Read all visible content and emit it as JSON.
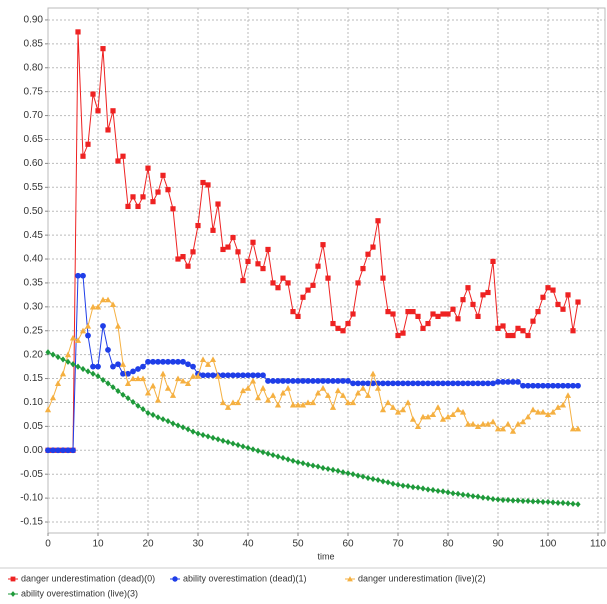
{
  "chart_data": {
    "type": "line",
    "x_label": "time",
    "x": [
      0,
      1,
      2,
      3,
      4,
      5,
      6,
      7,
      8,
      9,
      10,
      11,
      12,
      13,
      14,
      15,
      16,
      17,
      18,
      19,
      20,
      21,
      22,
      23,
      24,
      25,
      26,
      27,
      28,
      29,
      30,
      31,
      32,
      33,
      34,
      35,
      36,
      37,
      38,
      39,
      40,
      41,
      42,
      43,
      44,
      45,
      46,
      47,
      48,
      49,
      50,
      51,
      52,
      53,
      54,
      55,
      56,
      57,
      58,
      59,
      60,
      61,
      62,
      63,
      64,
      65,
      66,
      67,
      68,
      69,
      70,
      71,
      72,
      73,
      74,
      75,
      76,
      77,
      78,
      79,
      80,
      81,
      82,
      83,
      84,
      85,
      86,
      87,
      88,
      89,
      90,
      91,
      92,
      93,
      94,
      95,
      96,
      97,
      98,
      99,
      100,
      101,
      102,
      103,
      104,
      105,
      106
    ],
    "xlim": [
      0,
      111.4
    ],
    "xticks": [
      0,
      10,
      20,
      30,
      40,
      50,
      60,
      70,
      80,
      90,
      100,
      110
    ],
    "ylim": [
      -0.173,
      0.925
    ],
    "yticks": [
      -0.15,
      {
        "value": -0.1,
        "label": "-0.10"
      },
      -0.05,
      {
        "value": 0,
        "label": "0.00"
      },
      0.05,
      {
        "value": 0.1,
        "label": "0.10"
      },
      0.15,
      {
        "value": 0.2,
        "label": "0.20"
      },
      0.25,
      {
        "value": 0.3,
        "label": "0.30"
      },
      0.35,
      {
        "value": 0.4,
        "label": "0.40"
      },
      0.45,
      {
        "value": 0.5,
        "label": "0.50"
      },
      0.55,
      {
        "value": 0.6,
        "label": "0.60"
      },
      0.65,
      {
        "value": 0.7,
        "label": "0.70"
      },
      0.75,
      {
        "value": 0.8,
        "label": "0.80"
      },
      0.85,
      {
        "value": 0.9,
        "label": "0.90"
      }
    ],
    "grid": true,
    "legend": "bottom",
    "series": [
      {
        "name": "danger underestimation (dead)(0)",
        "color": "#ee2222",
        "marker": "square",
        "values": [
          0,
          0,
          0,
          0,
          0,
          0,
          0.875,
          0.615,
          0.64,
          0.745,
          0.71,
          0.84,
          0.67,
          0.71,
          0.605,
          0.615,
          0.51,
          0.53,
          0.51,
          0.53,
          0.59,
          0.52,
          0.54,
          0.575,
          0.545,
          0.505,
          0.4,
          0.405,
          0.385,
          0.415,
          0.47,
          0.56,
          0.555,
          0.46,
          0.515,
          0.42,
          0.425,
          0.445,
          0.415,
          0.355,
          0.395,
          0.435,
          0.39,
          0.38,
          0.42,
          0.35,
          0.34,
          0.36,
          0.35,
          0.29,
          0.28,
          0.32,
          0.335,
          0.345,
          0.385,
          0.43,
          0.36,
          0.265,
          0.255,
          0.25,
          0.265,
          0.285,
          0.35,
          0.38,
          0.41,
          0.425,
          0.48,
          0.36,
          0.29,
          0.285,
          0.24,
          0.245,
          0.29,
          0.29,
          0.28,
          0.255,
          0.265,
          0.285,
          0.28,
          0.285,
          0.285,
          0.295,
          0.275,
          0.315,
          0.34,
          0.305,
          0.28,
          0.325,
          0.33,
          0.395,
          0.255,
          0.26,
          0.24,
          0.24,
          0.255,
          0.25,
          0.24,
          0.27,
          0.29,
          0.32,
          0.34,
          0.335,
          0.305,
          0.295,
          0.325,
          0.25,
          0.31
        ]
      },
      {
        "name": "ability overestimation (dead)(1)",
        "color": "#1f3ee8",
        "marker": "circle",
        "values": [
          0,
          0,
          0,
          0,
          0,
          0,
          0.365,
          0.365,
          0.24,
          0.175,
          0.175,
          0.26,
          0.21,
          0.175,
          0.18,
          0.16,
          0.16,
          0.165,
          0.17,
          0.175,
          0.185,
          0.185,
          0.185,
          0.185,
          0.185,
          0.185,
          0.185,
          0.185,
          0.18,
          0.175,
          0.16,
          0.157,
          0.157,
          0.157,
          0.157,
          0.157,
          0.157,
          0.157,
          0.157,
          0.157,
          0.157,
          0.157,
          0.157,
          0.157,
          0.145,
          0.145,
          0.145,
          0.145,
          0.145,
          0.145,
          0.145,
          0.145,
          0.145,
          0.145,
          0.145,
          0.145,
          0.145,
          0.145,
          0.145,
          0.145,
          0.145,
          0.14,
          0.14,
          0.14,
          0.14,
          0.14,
          0.14,
          0.14,
          0.14,
          0.14,
          0.14,
          0.14,
          0.14,
          0.14,
          0.14,
          0.14,
          0.14,
          0.14,
          0.14,
          0.14,
          0.14,
          0.14,
          0.14,
          0.14,
          0.14,
          0.14,
          0.14,
          0.14,
          0.14,
          0.14,
          0.143,
          0.143,
          0.143,
          0.143,
          0.143,
          0.135,
          0.135,
          0.135,
          0.135,
          0.135,
          0.135,
          0.135,
          0.135,
          0.135,
          0.135,
          0.135,
          0.135
        ]
      },
      {
        "name": "danger underestimation (live)(2)",
        "color": "#f5b041",
        "marker": "triangle",
        "values": [
          0.085,
          0.11,
          0.14,
          0.16,
          0.2,
          0.235,
          0.23,
          0.25,
          0.26,
          0.3,
          0.3,
          0.315,
          0.315,
          0.305,
          0.26,
          0.18,
          0.14,
          0.15,
          0.15,
          0.15,
          0.12,
          0.135,
          0.105,
          0.16,
          0.13,
          0.115,
          0.15,
          0.145,
          0.14,
          0.155,
          0.155,
          0.19,
          0.18,
          0.19,
          0.155,
          0.1,
          0.09,
          0.1,
          0.1,
          0.125,
          0.13,
          0.145,
          0.11,
          0.13,
          0.105,
          0.115,
          0.095,
          0.12,
          0.13,
          0.095,
          0.095,
          0.095,
          0.1,
          0.1,
          0.12,
          0.13,
          0.115,
          0.09,
          0.125,
          0.115,
          0.1,
          0.1,
          0.12,
          0.13,
          0.115,
          0.16,
          0.13,
          0.085,
          0.1,
          0.09,
          0.08,
          0.085,
          0.1,
          0.065,
          0.05,
          0.07,
          0.07,
          0.075,
          0.09,
          0.065,
          0.07,
          0.075,
          0.085,
          0.08,
          0.055,
          0.055,
          0.05,
          0.055,
          0.055,
          0.06,
          0.045,
          0.045,
          0.055,
          0.04,
          0.055,
          0.06,
          0.07,
          0.085,
          0.08,
          0.08,
          0.075,
          0.08,
          0.09,
          0.095,
          0.115,
          0.045,
          0.045
        ]
      },
      {
        "name": "ability overestimation (live)(3)",
        "color": "#1e9a3a",
        "marker": "diamond",
        "values": [
          0.205,
          0.2,
          0.195,
          0.19,
          0.185,
          0.18,
          0.175,
          0.17,
          0.165,
          0.16,
          0.155,
          0.147,
          0.14,
          0.132,
          0.124,
          0.116,
          0.109,
          0.101,
          0.093,
          0.086,
          0.078,
          0.074,
          0.069,
          0.065,
          0.061,
          0.056,
          0.052,
          0.048,
          0.044,
          0.039,
          0.035,
          0.032,
          0.029,
          0.026,
          0.023,
          0.02,
          0.017,
          0.014,
          0.011,
          0.008,
          0.005,
          0.002,
          -0.001,
          -0.004,
          -0.007,
          -0.01,
          -0.013,
          -0.016,
          -0.019,
          -0.022,
          -0.025,
          -0.027,
          -0.03,
          -0.032,
          -0.034,
          -0.037,
          -0.039,
          -0.041,
          -0.043,
          -0.046,
          -0.048,
          -0.05,
          -0.053,
          -0.055,
          -0.058,
          -0.06,
          -0.062,
          -0.065,
          -0.067,
          -0.07,
          -0.072,
          -0.074,
          -0.075,
          -0.077,
          -0.078,
          -0.08,
          -0.082,
          -0.083,
          -0.085,
          -0.086,
          -0.088,
          -0.09,
          -0.091,
          -0.093,
          -0.094,
          -0.096,
          -0.097,
          -0.099,
          -0.1,
          -0.102,
          -0.103,
          -0.104,
          -0.104,
          -0.105,
          -0.105,
          -0.106,
          -0.106,
          -0.107,
          -0.107,
          -0.108,
          -0.108,
          -0.109,
          -0.11,
          -0.11,
          -0.111,
          -0.112,
          -0.113
        ]
      }
    ]
  }
}
